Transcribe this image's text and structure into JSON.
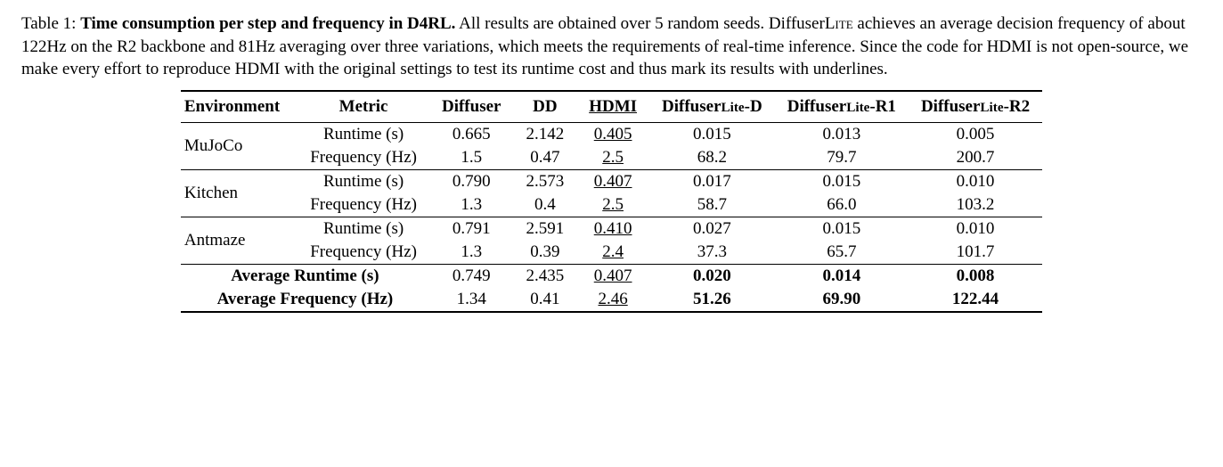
{
  "caption": {
    "lead": "Table 1: ",
    "title_bold": "Time consumption per step and frequency in D4RL.",
    "rest": " All results are obtained over 5 random seeds. Diffuser",
    "lite1": "Lite",
    "rest2": " achieves an average decision frequency of about 122Hz on the R2 backbone and 81Hz averaging over three variations, which meets the requirements of real-time inference. Since the code for HDMI is not open-source, we make every effort to reproduce HDMI with the original settings to test its runtime cost and thus mark its results with underlines."
  },
  "headers": {
    "env": "Environment",
    "metric": "Metric",
    "diffuser": "Diffuser",
    "dd": "DD",
    "hdmi": "HDMI",
    "dl_d_a": "Diffuser",
    "dl_d_b": "Lite",
    "dl_d_c": "-D",
    "dl_r1_a": "Diffuser",
    "dl_r1_b": "Lite",
    "dl_r1_c": "-R1",
    "dl_r2_a": "Diffuser",
    "dl_r2_b": "Lite",
    "dl_r2_c": "-R2"
  },
  "metrics": {
    "runtime": "Runtime (s)",
    "freq": "Frequency (Hz)"
  },
  "rows": {
    "mujoco": {
      "env": "MuJoCo",
      "runtime": {
        "diffuser": "0.665",
        "dd": "2.142",
        "hdmi": "0.405",
        "d": "0.015",
        "r1": "0.013",
        "r2": "0.005"
      },
      "freq": {
        "diffuser": "1.5",
        "dd": "0.47",
        "hdmi": "2.5",
        "d": "68.2",
        "r1": "79.7",
        "r2": "200.7"
      }
    },
    "kitchen": {
      "env": "Kitchen",
      "runtime": {
        "diffuser": "0.790",
        "dd": "2.573",
        "hdmi": "0.407",
        "d": "0.017",
        "r1": "0.015",
        "r2": "0.010"
      },
      "freq": {
        "diffuser": "1.3",
        "dd": "0.4",
        "hdmi": "2.5",
        "d": "58.7",
        "r1": "66.0",
        "r2": "103.2"
      }
    },
    "antmaze": {
      "env": "Antmaze",
      "runtime": {
        "diffuser": "0.791",
        "dd": "2.591",
        "hdmi": "0.410",
        "d": "0.027",
        "r1": "0.015",
        "r2": "0.010"
      },
      "freq": {
        "diffuser": "1.3",
        "dd": "0.39",
        "hdmi": "2.4",
        "d": "37.3",
        "r1": "65.7",
        "r2": "101.7"
      }
    }
  },
  "avg": {
    "runtime_label": "Average Runtime (s)",
    "freq_label": "Average Frequency (Hz)",
    "runtime": {
      "diffuser": "0.749",
      "dd": "2.435",
      "hdmi": "0.407",
      "d": "0.020",
      "r1": "0.014",
      "r2": "0.008"
    },
    "freq": {
      "diffuser": "1.34",
      "dd": "0.41",
      "hdmi": "2.46",
      "d": "51.26",
      "r1": "69.90",
      "r2": "122.44"
    }
  }
}
